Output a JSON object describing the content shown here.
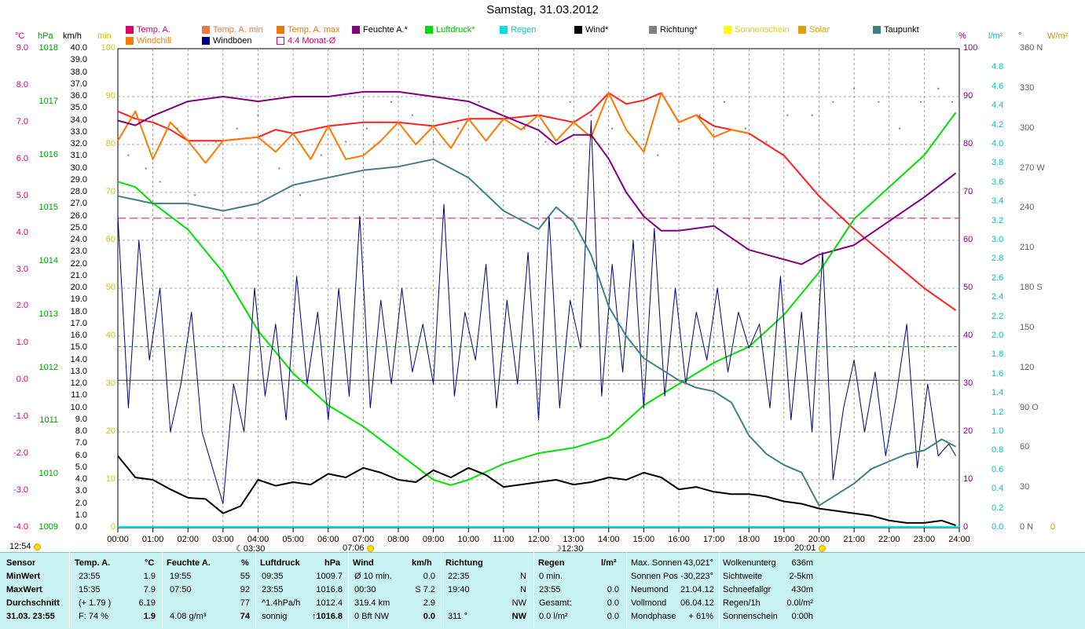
{
  "title": "Samstag, 31.03.2012",
  "timestamp": "12:54",
  "legend": [
    {
      "label": "Temp. A.",
      "color": "#e0006a",
      "col": 0,
      "row": 0
    },
    {
      "label": "Windchill",
      "color": "#ff7800",
      "col": 0,
      "row": 1
    },
    {
      "label": "Temp. A. min",
      "color": "#f07840",
      "col": 1,
      "row": 0
    },
    {
      "label": "Windböen",
      "color": "#000080",
      "col": 1,
      "row": 1
    },
    {
      "label": "Temp. A. max",
      "color": "#f07800",
      "col": 2,
      "row": 0
    },
    {
      "label": "4.4 Monat-Ø",
      "color": "#e0006a",
      "col": 2,
      "row": 1,
      "hollow": true
    },
    {
      "label": "Feuchte A.*",
      "color": "#800080",
      "col": 3,
      "row": 0
    },
    {
      "label": "Luftdruck*",
      "color": "#00e000",
      "col": 4,
      "row": 0
    },
    {
      "label": "Regen",
      "color": "#00e0e0",
      "col": 5,
      "row": 0
    },
    {
      "label": "Wind*",
      "color": "#000000",
      "col": 6,
      "row": 0
    },
    {
      "label": "Richtung*",
      "color": "#808080",
      "col": 7,
      "row": 0
    },
    {
      "label": "Sonnenschein",
      "color": "#ffff00",
      "col": 8,
      "row": 0
    },
    {
      "label": "Solar",
      "color": "#e0a000",
      "col": 9,
      "row": 0
    },
    {
      "label": "Taupunkt",
      "color": "#408080",
      "col": 10,
      "row": 0
    }
  ],
  "axis_units": {
    "temp": "°C",
    "pressure": "hPa",
    "wind": "km/h",
    "sun": "min",
    "humidity": "%",
    "rain": "l/m²",
    "direction": "°",
    "solar": "W/m²"
  },
  "markers": {
    "sunrise": "07:06",
    "sunset": "20:01",
    "moonset": "03:30",
    "moonrise": "12:30"
  },
  "chart_data": {
    "type": "line",
    "x_unit": "hour",
    "xlim": [
      0,
      24
    ],
    "x_ticks": [
      "00:00",
      "01:00",
      "02:00",
      "03:00",
      "04:00",
      "05:00",
      "06:00",
      "07:00",
      "08:00",
      "09:00",
      "10:00",
      "11:00",
      "12:00",
      "13:00",
      "14:00",
      "15:00",
      "16:00",
      "17:00",
      "18:00",
      "19:00",
      "20:00",
      "21:00",
      "22:00",
      "23:00",
      "24:00"
    ],
    "axes": {
      "temp": {
        "min": -4,
        "max": 9,
        "ticks": [
          "9.0",
          "8.0",
          "7.0",
          "6.0",
          "5.0",
          "4.0",
          "3.0",
          "2.0",
          "1.0",
          "0.0",
          "-1.0",
          "-2.0",
          "-3.0",
          "-4.0"
        ]
      },
      "pressure": {
        "min": 1009,
        "max": 1018,
        "ticks": [
          "1018",
          "1017",
          "1016",
          "1015",
          "1014",
          "1013",
          "1012",
          "1011",
          "1010",
          "1009"
        ]
      },
      "wind": {
        "min": 0,
        "max": 40,
        "ticks": [
          "40.0",
          "39.0",
          "38.0",
          "37.0",
          "36.0",
          "35.0",
          "34.0",
          "33.0",
          "32.0",
          "31.0",
          "30.0",
          "29.0",
          "28.0",
          "27.0",
          "26.0",
          "25.0",
          "24.0",
          "23.0",
          "22.0",
          "21.0",
          "20.0",
          "19.0",
          "18.0",
          "17.0",
          "16.0",
          "15.0",
          "14.0",
          "13.0",
          "12.0",
          "11.0",
          "10.0",
          "9.0",
          "8.0",
          "7.0",
          "6.0",
          "5.0",
          "4.0",
          "3.0",
          "2.0",
          "1.0",
          "0.0"
        ]
      },
      "sun": {
        "min": 0,
        "max": 100,
        "ticks": [
          "100",
          "90",
          "80",
          "70",
          "60",
          "50",
          "40",
          "30",
          "20",
          "10",
          "0"
        ]
      },
      "humidity": {
        "min": 0,
        "max": 100,
        "ticks": [
          "100",
          "90",
          "80",
          "70",
          "60",
          "50",
          "40",
          "30",
          "20",
          "10",
          "0"
        ]
      },
      "rain": {
        "min": 0,
        "max": 5,
        "ticks": [
          "4.8",
          "4.6",
          "4.4",
          "4.2",
          "4.0",
          "3.8",
          "3.6",
          "3.4",
          "3.2",
          "3.0",
          "2.8",
          "2.6",
          "2.4",
          "2.2",
          "2.0",
          "1.8",
          "1.6",
          "1.4",
          "1.2",
          "1.0",
          "0.8",
          "0.6",
          "0.4",
          "0.2",
          "0.0"
        ]
      },
      "direction": {
        "min": 0,
        "max": 360,
        "ticks": [
          "360 N",
          "330",
          "300",
          "270 W",
          "240",
          "210",
          "180 S",
          "150",
          "120",
          "90  O",
          "60",
          "30",
          "0   N"
        ]
      },
      "solar": {
        "min": 0,
        "max": 100,
        "ticks": [
          "0"
        ]
      }
    },
    "monthly_avg_temp": 4.4,
    "series": [
      {
        "name": "Temp. A.",
        "axis": "temp",
        "color": "#ff2020",
        "x": [
          0,
          0.5,
          1,
          1.5,
          2,
          3,
          4,
          4.5,
          5,
          6,
          7,
          8,
          9,
          10,
          11,
          12,
          13,
          13.5,
          14,
          14.5,
          15,
          15.5,
          16,
          16.5,
          17,
          17.5,
          18,
          19,
          20,
          21,
          22,
          23,
          23.9
        ],
        "y": [
          7.3,
          7.1,
          7.0,
          6.8,
          6.5,
          6.5,
          6.6,
          6.8,
          6.7,
          6.9,
          7.0,
          7.0,
          6.9,
          7.1,
          7.1,
          7.2,
          7.0,
          7.3,
          7.8,
          7.5,
          7.6,
          7.8,
          7.0,
          7.2,
          6.9,
          6.8,
          6.7,
          6.1,
          5.0,
          4.1,
          3.3,
          2.5,
          1.9
        ]
      },
      {
        "name": "Windchill",
        "axis": "temp",
        "color": "#ff7800",
        "x": [
          0,
          0.5,
          1,
          1.5,
          2,
          2.5,
          3,
          4,
          4.5,
          5,
          5.5,
          6,
          6.5,
          7,
          7.5,
          8,
          8.5,
          9,
          9.5,
          10,
          10.5,
          11,
          11.5,
          12,
          12.5,
          13,
          13.5,
          14,
          14.5,
          15,
          15.5,
          16,
          16.5,
          17,
          17.5,
          18
        ],
        "y": [
          6.5,
          7.3,
          6.0,
          7.0,
          6.5,
          5.9,
          6.5,
          6.6,
          6.2,
          6.7,
          6.0,
          6.9,
          6.0,
          6.1,
          6.5,
          7.0,
          6.4,
          6.9,
          6.3,
          7.1,
          6.5,
          7.1,
          6.8,
          7.2,
          6.5,
          7.0,
          6.6,
          7.8,
          6.8,
          6.2,
          7.8,
          7.0,
          7.2,
          6.6,
          6.8,
          6.7
        ]
      },
      {
        "name": "Feuchte A.*",
        "axis": "humidity",
        "color": "#800080",
        "x": [
          0,
          0.5,
          1,
          2,
          3,
          4,
          5,
          6,
          7,
          8,
          9,
          10,
          11,
          12,
          12.5,
          13,
          13.5,
          14,
          14.5,
          15,
          15.5,
          16,
          17,
          18,
          18.5,
          19,
          19.5,
          20,
          21,
          22,
          23,
          23.9
        ],
        "y": [
          85,
          84,
          86,
          89,
          90,
          89,
          90,
          90,
          91,
          91,
          90,
          89,
          86,
          83,
          80,
          82,
          82,
          77,
          70,
          65,
          62,
          62,
          63,
          58,
          57,
          56,
          55,
          57,
          59,
          64,
          69,
          74
        ]
      },
      {
        "name": "Luftdruck*",
        "axis": "pressure",
        "color": "#00e000",
        "x": [
          0,
          0.5,
          1,
          2,
          3,
          4,
          5,
          6,
          7,
          8,
          9,
          9.5,
          10,
          11,
          12,
          13,
          14,
          15,
          16,
          17,
          18,
          19,
          20,
          21,
          22,
          23,
          23.9
        ],
        "y": [
          1015.5,
          1015.4,
          1015.1,
          1014.6,
          1013.8,
          1012.7,
          1011.9,
          1011.3,
          1010.9,
          1010.4,
          1009.9,
          1009.8,
          1009.9,
          1010.2,
          1010.4,
          1010.5,
          1010.7,
          1011.3,
          1011.7,
          1012.1,
          1012.4,
          1013.0,
          1013.8,
          1014.8,
          1015.4,
          1016.0,
          1016.8
        ]
      },
      {
        "name": "Wind*",
        "axis": "wind",
        "color": "#000000",
        "x": [
          0,
          0.5,
          1,
          1.5,
          2,
          2.5,
          3,
          3.5,
          4,
          4.5,
          5,
          5.5,
          6,
          6.5,
          7,
          7.5,
          8,
          8.5,
          9,
          9.5,
          10,
          10.5,
          11,
          11.5,
          12,
          12.5,
          13,
          13.5,
          14,
          14.5,
          15,
          15.5,
          16,
          16.5,
          17,
          17.5,
          18,
          18.5,
          19,
          19.5,
          20,
          20.5,
          21,
          21.5,
          22,
          22.5,
          23,
          23.5,
          23.9
        ],
        "y": [
          6.0,
          4.2,
          4.0,
          3.2,
          2.5,
          2.4,
          1.2,
          1.8,
          4.0,
          3.5,
          3.8,
          3.6,
          4.5,
          4.2,
          5.0,
          4.6,
          4.0,
          3.8,
          4.8,
          4.2,
          5.0,
          4.4,
          3.4,
          3.6,
          3.8,
          4.0,
          3.6,
          3.8,
          4.2,
          4.0,
          4.6,
          4.2,
          3.2,
          3.4,
          3.0,
          2.8,
          2.8,
          2.6,
          2.2,
          2.0,
          1.6,
          1.4,
          1.2,
          1.0,
          0.6,
          0.4,
          0.4,
          0.6,
          0.2
        ]
      },
      {
        "name": "Windböen",
        "axis": "wind",
        "color": "#000080",
        "x": [
          0,
          0.3,
          0.6,
          0.9,
          1.2,
          1.5,
          1.8,
          2.1,
          2.4,
          2.7,
          3.0,
          3.3,
          3.6,
          3.9,
          4.2,
          4.5,
          4.8,
          5.1,
          5.4,
          5.7,
          6.0,
          6.3,
          6.6,
          6.9,
          7.2,
          7.5,
          7.8,
          8.1,
          8.4,
          8.7,
          9.0,
          9.3,
          9.6,
          9.9,
          10.2,
          10.5,
          10.8,
          11.1,
          11.4,
          11.7,
          12.0,
          12.3,
          12.6,
          12.9,
          13.2,
          13.5,
          13.8,
          14.1,
          14.4,
          14.7,
          15.0,
          15.3,
          15.6,
          15.9,
          16.2,
          16.5,
          16.8,
          17.1,
          17.4,
          17.7,
          18.0,
          18.3,
          18.6,
          18.9,
          19.2,
          19.5,
          19.8,
          20.1,
          20.4,
          20.7,
          21.0,
          21.3,
          21.6,
          21.9,
          22.2,
          22.5,
          22.8,
          23.1,
          23.4,
          23.7,
          23.9
        ],
        "y": [
          26,
          10,
          24,
          14,
          20,
          8,
          12,
          18,
          8,
          5,
          2,
          12,
          8,
          20,
          11,
          17,
          9,
          21,
          12,
          18,
          9,
          20,
          11,
          26,
          10,
          19,
          12,
          20,
          13,
          17,
          12,
          27,
          11,
          18,
          14,
          22,
          10,
          19,
          12,
          23,
          9,
          26,
          10,
          19,
          15,
          34,
          11,
          22,
          13,
          24,
          10,
          25,
          11,
          20,
          12,
          18,
          14,
          20,
          13,
          18,
          15,
          17,
          10,
          21,
          9,
          18,
          8,
          23,
          4,
          10,
          14,
          8,
          13,
          6,
          11,
          17,
          5,
          12,
          6,
          7,
          6
        ]
      },
      {
        "name": "Taupunkt",
        "axis": "temp",
        "color": "#408080",
        "x": [
          0,
          0.5,
          1,
          2,
          3,
          4,
          5,
          6,
          7,
          8,
          9,
          10,
          11,
          12,
          12.5,
          13,
          13.5,
          14,
          14.5,
          15,
          15.5,
          16,
          16.5,
          17,
          17.5,
          18,
          18.5,
          19,
          19.5,
          20,
          20.5,
          21,
          21.5,
          22,
          22.5,
          23,
          23.5,
          23.9
        ],
        "y": [
          5.0,
          4.9,
          4.8,
          4.8,
          4.6,
          4.8,
          5.3,
          5.5,
          5.7,
          5.8,
          6.0,
          5.5,
          4.6,
          4.1,
          4.7,
          4.3,
          3.4,
          2.0,
          1.2,
          0.6,
          0.3,
          0.0,
          -0.2,
          -0.3,
          -0.6,
          -1.5,
          -2.0,
          -2.3,
          -2.5,
          -3.4,
          -3.1,
          -2.8,
          -2.4,
          -2.2,
          -2.0,
          -1.9,
          -1.6,
          -1.8
        ]
      },
      {
        "name": "Richtung*",
        "axis": "direction",
        "color": "#808080",
        "scatter": true,
        "x": [
          0.3,
          0.8,
          1.2,
          1.7,
          2.2,
          2.8,
          3.4,
          4.0,
          4.6,
          5.2,
          5.8,
          6.5,
          7.1,
          7.8,
          8.4,
          9.0,
          9.7,
          10.3,
          11.0,
          11.6,
          12.2,
          12.9,
          13.5,
          14.1,
          14.8,
          15.4,
          16.0,
          16.6,
          17.3,
          17.9,
          18.5,
          19.1,
          19.8,
          20.4,
          21.0,
          21.7,
          22.3,
          22.9,
          23.4,
          23.8
        ],
        "y": [
          280,
          270,
          260,
          300,
          250,
          290,
          300,
          310,
          270,
          250,
          280,
          290,
          300,
          320,
          310,
          290,
          300,
          320,
          310,
          300,
          290,
          320,
          310,
          300,
          290,
          280,
          300,
          310,
          320,
          300,
          290,
          310,
          310,
          320,
          330,
          320,
          300,
          320,
          330,
          320
        ]
      }
    ]
  },
  "table": {
    "headers": {
      "sensor": "Sensor",
      "temp": "Temp. A.",
      "temp_unit": "°C",
      "hum": "Feuchte A.",
      "hum_unit": "%",
      "press": "Luftdruck",
      "press_unit": "hPa",
      "wind": "Wind",
      "wind_unit": "km/h",
      "dir": "Richtung",
      "rain": "Regen",
      "rain_unit": "l/m²"
    },
    "rows": [
      {
        "label": "MinWert",
        "temp_time": "23:55",
        "temp_val": "1.9",
        "hum_time": "19:55",
        "hum_val": "55",
        "press_time": "09:35",
        "press_val": "1009.7",
        "wind_label": "Ø 10 min.",
        "wind_val": "0.0",
        "dir_time": "22:35",
        "dir_val": "N",
        "rain_label": "0 min.",
        "rain_val": ""
      },
      {
        "label": "MaxWert",
        "temp_time": "15:35",
        "temp_val": "7.9",
        "hum_time": "07:50",
        "hum_val": "92",
        "press_time": "23:55",
        "press_val": "1016.8",
        "wind_label": "00:30",
        "wind_val": "S 7.2",
        "dir_time": "19:40",
        "dir_val": "N",
        "rain_label": "23:55",
        "rain_val": "0.0"
      },
      {
        "label": "Durchschnitt",
        "temp_time": "(+ 1.79 )",
        "temp_val": "6.19",
        "hum_time": "",
        "hum_val": "77",
        "press_time": "^1.4hPa/h",
        "press_val": "1012.4",
        "wind_label": "319.4 km",
        "wind_val": "2.9",
        "dir_time": "",
        "dir_val": "NW",
        "rain_label": "Gesamt:",
        "rain_val": "0.0"
      },
      {
        "label": "31.03. 23:55",
        "temp_time": "F: 74 %",
        "temp_val": "1.9",
        "hum_time": "4.08 g/m³",
        "hum_val": "74",
        "press_time": "sonnig",
        "press_val": "↑1016.8",
        "wind_label": "0 Bft NW",
        "wind_val": "0.0",
        "dir_time": "311 °",
        "dir_val": "NW",
        "rain_label": "0.0 l/m²",
        "rain_val": "0.0"
      }
    ],
    "astro": [
      {
        "l": "Max. Sonnen",
        "v": "43,021°"
      },
      {
        "l": "Sonnen Pos",
        "v": "-30,223°"
      },
      {
        "l": "Neumond",
        "v": "21.04.12"
      },
      {
        "l": "Vollmond",
        "v": "06.04.12"
      },
      {
        "l": "Mondphase",
        "v": "+ 61%"
      }
    ],
    "extra": [
      {
        "l": "Wolkenunterg",
        "v": "636m"
      },
      {
        "l": "Sichtweite",
        "v": "2-5km"
      },
      {
        "l": "Schneefallgr",
        "v": "430m"
      },
      {
        "l": "Regen/1h",
        "v": "0.0l/m²"
      },
      {
        "l": "Sonnenschein",
        "v": "0:00h"
      }
    ]
  }
}
